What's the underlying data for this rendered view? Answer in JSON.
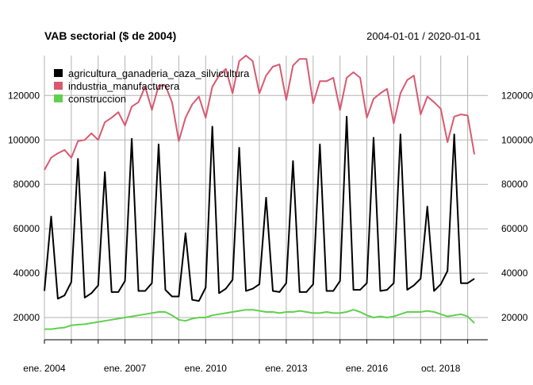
{
  "chart_data": {
    "type": "line",
    "title": "VAB sectorial ($ de 2004)",
    "date_range": "2004-01-01 / 2020-01-01",
    "x_start": "2004-01",
    "x_end": "2020-07",
    "ylim": [
      10000,
      138000
    ],
    "grid": true,
    "legend_position": "top-left",
    "x_tick_dates": [
      "2004-01",
      "2005-01",
      "2006-01",
      "2007-01",
      "2008-01",
      "2009-01",
      "2010-01",
      "2011-01",
      "2012-01",
      "2013-01",
      "2014-01",
      "2015-01",
      "2016-01",
      "2017-01",
      "2018-01",
      "2018-10",
      "2019-10"
    ],
    "x_tick_labels": [
      {
        "date": "2004-01",
        "label": "ene. 2004"
      },
      {
        "date": "2007-01",
        "label": "ene. 2007"
      },
      {
        "date": "2010-01",
        "label": "ene. 2010"
      },
      {
        "date": "2013-01",
        "label": "ene. 2013"
      },
      {
        "date": "2016-01",
        "label": "ene. 2016"
      },
      {
        "date": "2018-10",
        "label": "oct. 2018"
      }
    ],
    "y_ticks": [
      {
        "value": 20000,
        "label": "20000"
      },
      {
        "value": 40000,
        "label": "40000"
      },
      {
        "value": 60000,
        "label": "60000"
      },
      {
        "value": 80000,
        "label": "80000"
      },
      {
        "value": 100000,
        "label": "100000"
      },
      {
        "value": 120000,
        "label": "120000"
      }
    ],
    "series": [
      {
        "name": "agricultura_ganaderia_caza_silvicultura",
        "color": "#000000",
        "values": [
          [
            "2004-01",
            32000
          ],
          [
            "2004-04",
            65500
          ],
          [
            "2004-07",
            28500
          ],
          [
            "2004-10",
            30000
          ],
          [
            "2005-01",
            36000
          ],
          [
            "2005-04",
            91500
          ],
          [
            "2005-07",
            29000
          ],
          [
            "2005-10",
            31000
          ],
          [
            "2006-01",
            34500
          ],
          [
            "2006-04",
            85500
          ],
          [
            "2006-07",
            31500
          ],
          [
            "2006-10",
            31500
          ],
          [
            "2007-01",
            36500
          ],
          [
            "2007-04",
            100500
          ],
          [
            "2007-07",
            32000
          ],
          [
            "2007-10",
            32000
          ],
          [
            "2008-01",
            35500
          ],
          [
            "2008-04",
            98000
          ],
          [
            "2008-07",
            32500
          ],
          [
            "2008-10",
            29500
          ],
          [
            "2009-01",
            29500
          ],
          [
            "2009-04",
            58000
          ],
          [
            "2009-07",
            28000
          ],
          [
            "2009-10",
            27500
          ],
          [
            "2010-01",
            33500
          ],
          [
            "2010-04",
            106000
          ],
          [
            "2010-07",
            31000
          ],
          [
            "2010-10",
            33000
          ],
          [
            "2011-01",
            37000
          ],
          [
            "2011-04",
            96500
          ],
          [
            "2011-07",
            32000
          ],
          [
            "2011-10",
            33000
          ],
          [
            "2012-01",
            35000
          ],
          [
            "2012-04",
            74000
          ],
          [
            "2012-07",
            32000
          ],
          [
            "2012-10",
            31500
          ],
          [
            "2013-01",
            35500
          ],
          [
            "2013-04",
            90500
          ],
          [
            "2013-07",
            31500
          ],
          [
            "2013-10",
            31500
          ],
          [
            "2014-01",
            35000
          ],
          [
            "2014-04",
            98000
          ],
          [
            "2014-07",
            32000
          ],
          [
            "2014-10",
            32000
          ],
          [
            "2015-01",
            36500
          ],
          [
            "2015-04",
            110500
          ],
          [
            "2015-07",
            32500
          ],
          [
            "2015-10",
            32500
          ],
          [
            "2016-01",
            35500
          ],
          [
            "2016-04",
            101000
          ],
          [
            "2016-07",
            32000
          ],
          [
            "2016-10",
            32500
          ],
          [
            "2017-01",
            35500
          ],
          [
            "2017-04",
            102500
          ],
          [
            "2017-07",
            32500
          ],
          [
            "2017-10",
            34500
          ],
          [
            "2018-01",
            37500
          ],
          [
            "2018-04",
            70000
          ],
          [
            "2018-07",
            32000
          ],
          [
            "2018-10",
            35000
          ],
          [
            "2019-01",
            41000
          ],
          [
            "2019-04",
            102500
          ],
          [
            "2019-07",
            35500
          ],
          [
            "2019-10",
            35500
          ],
          [
            "2020-01",
            37500
          ]
        ]
      },
      {
        "name": "industria_manufacturera",
        "color": "#d95970",
        "values": [
          [
            "2004-01",
            86500
          ],
          [
            "2004-04",
            92000
          ],
          [
            "2004-07",
            94000
          ],
          [
            "2004-10",
            95500
          ],
          [
            "2005-01",
            92000
          ],
          [
            "2005-04",
            99500
          ],
          [
            "2005-07",
            100000
          ],
          [
            "2005-10",
            103000
          ],
          [
            "2006-01",
            100000
          ],
          [
            "2006-04",
            108000
          ],
          [
            "2006-07",
            110000
          ],
          [
            "2006-10",
            112500
          ],
          [
            "2007-01",
            106500
          ],
          [
            "2007-04",
            115000
          ],
          [
            "2007-07",
            117000
          ],
          [
            "2007-10",
            124000
          ],
          [
            "2008-01",
            113500
          ],
          [
            "2008-04",
            124500
          ],
          [
            "2008-07",
            124500
          ],
          [
            "2008-10",
            117000
          ],
          [
            "2009-01",
            99500
          ],
          [
            "2009-04",
            110000
          ],
          [
            "2009-07",
            116000
          ],
          [
            "2009-10",
            119500
          ],
          [
            "2010-01",
            110000
          ],
          [
            "2010-04",
            124000
          ],
          [
            "2010-07",
            129000
          ],
          [
            "2010-10",
            132000
          ],
          [
            "2011-01",
            121000
          ],
          [
            "2011-04",
            135500
          ],
          [
            "2011-07",
            138000
          ],
          [
            "2011-10",
            135500
          ],
          [
            "2012-01",
            121000
          ],
          [
            "2012-04",
            129000
          ],
          [
            "2012-07",
            133000
          ],
          [
            "2012-10",
            134000
          ],
          [
            "2013-01",
            118000
          ],
          [
            "2013-04",
            133500
          ],
          [
            "2013-07",
            136500
          ],
          [
            "2013-10",
            136500
          ],
          [
            "2014-01",
            116500
          ],
          [
            "2014-04",
            126500
          ],
          [
            "2014-07",
            126500
          ],
          [
            "2014-10",
            128000
          ],
          [
            "2015-01",
            113500
          ],
          [
            "2015-04",
            128000
          ],
          [
            "2015-07",
            130500
          ],
          [
            "2015-10",
            128000
          ],
          [
            "2016-01",
            110000
          ],
          [
            "2016-04",
            118500
          ],
          [
            "2016-07",
            121000
          ],
          [
            "2016-10",
            123000
          ],
          [
            "2017-01",
            107500
          ],
          [
            "2017-04",
            121000
          ],
          [
            "2017-07",
            127000
          ],
          [
            "2017-10",
            129000
          ],
          [
            "2018-01",
            111500
          ],
          [
            "2018-04",
            119500
          ],
          [
            "2018-07",
            117000
          ],
          [
            "2018-10",
            114000
          ],
          [
            "2019-01",
            99000
          ],
          [
            "2019-04",
            110500
          ],
          [
            "2019-07",
            111500
          ],
          [
            "2019-10",
            111000
          ],
          [
            "2020-01",
            93500
          ]
        ]
      },
      {
        "name": "construccion",
        "color": "#61d04f",
        "values": [
          [
            "2004-01",
            14800
          ],
          [
            "2004-04",
            14800
          ],
          [
            "2004-07",
            15200
          ],
          [
            "2004-10",
            15500
          ],
          [
            "2005-01",
            16500
          ],
          [
            "2005-04",
            16800
          ],
          [
            "2005-07",
            17000
          ],
          [
            "2005-10",
            17500
          ],
          [
            "2006-01",
            18000
          ],
          [
            "2006-04",
            18500
          ],
          [
            "2006-07",
            19000
          ],
          [
            "2006-10",
            19500
          ],
          [
            "2007-01",
            20000
          ],
          [
            "2007-04",
            20500
          ],
          [
            "2007-07",
            21000
          ],
          [
            "2007-10",
            21500
          ],
          [
            "2008-01",
            22000
          ],
          [
            "2008-04",
            22500
          ],
          [
            "2008-07",
            22500
          ],
          [
            "2008-10",
            21000
          ],
          [
            "2009-01",
            19000
          ],
          [
            "2009-04",
            18500
          ],
          [
            "2009-07",
            19500
          ],
          [
            "2009-10",
            20000
          ],
          [
            "2010-01",
            20000
          ],
          [
            "2010-04",
            21000
          ],
          [
            "2010-07",
            21500
          ],
          [
            "2010-10",
            22000
          ],
          [
            "2011-01",
            22500
          ],
          [
            "2011-04",
            23000
          ],
          [
            "2011-07",
            23500
          ],
          [
            "2011-10",
            23500
          ],
          [
            "2012-01",
            23000
          ],
          [
            "2012-04",
            22500
          ],
          [
            "2012-07",
            22500
          ],
          [
            "2012-10",
            22000
          ],
          [
            "2013-01",
            22500
          ],
          [
            "2013-04",
            22500
          ],
          [
            "2013-07",
            23000
          ],
          [
            "2013-10",
            22500
          ],
          [
            "2014-01",
            22000
          ],
          [
            "2014-04",
            22000
          ],
          [
            "2014-07",
            22500
          ],
          [
            "2014-10",
            22000
          ],
          [
            "2015-01",
            22000
          ],
          [
            "2015-04",
            22500
          ],
          [
            "2015-07",
            23500
          ],
          [
            "2015-10",
            22500
          ],
          [
            "2016-01",
            21000
          ],
          [
            "2016-04",
            20000
          ],
          [
            "2016-07",
            20500
          ],
          [
            "2016-10",
            20000
          ],
          [
            "2017-01",
            20500
          ],
          [
            "2017-04",
            21500
          ],
          [
            "2017-07",
            22500
          ],
          [
            "2017-10",
            22500
          ],
          [
            "2018-01",
            22500
          ],
          [
            "2018-04",
            23000
          ],
          [
            "2018-07",
            22500
          ],
          [
            "2018-10",
            21500
          ],
          [
            "2019-01",
            20500
          ],
          [
            "2019-04",
            21000
          ],
          [
            "2019-07",
            21500
          ],
          [
            "2019-10",
            20500
          ],
          [
            "2020-01",
            17500
          ]
        ]
      }
    ]
  }
}
